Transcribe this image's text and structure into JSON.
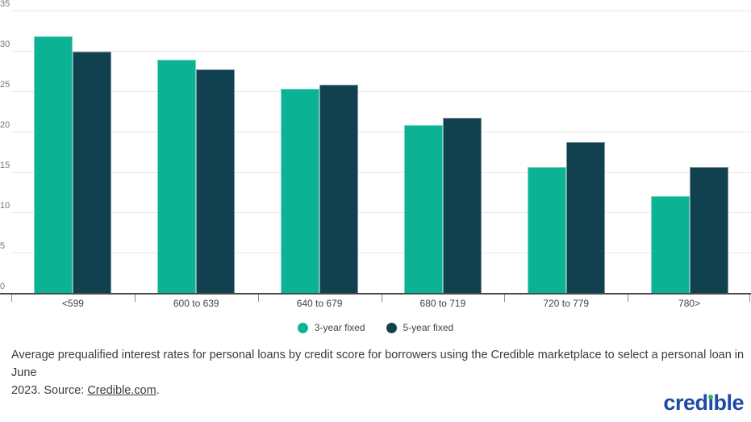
{
  "chart_data": {
    "type": "bar",
    "title": "",
    "categories": [
      "<599",
      "600 to 639",
      "640 to 679",
      "680 to 719",
      "720 to 779",
      "780>"
    ],
    "series": [
      {
        "name": "3-year fixed",
        "color": "#0cb294",
        "values": [
          31.8,
          28.9,
          25.3,
          20.8,
          15.6,
          12.0
        ]
      },
      {
        "name": "5-year fixed",
        "color": "#11404f",
        "values": [
          29.9,
          27.7,
          25.8,
          21.7,
          18.7,
          15.6
        ]
      }
    ],
    "ylim": [
      0,
      35
    ],
    "ytick_step": 5,
    "yticks": [
      0,
      5,
      10,
      15,
      20,
      25,
      30,
      35
    ],
    "grid": true,
    "legend_position": "bottom",
    "gridline_color": "#e7e7e7",
    "axis_color": "#4a4a4a"
  },
  "caption": {
    "line1": "Average prequalified interest rates for personal loans by credit score for borrowers using the Credible marketplace to select a personal loan in June",
    "line2_before_link": "2023. Source: ",
    "link_text": "Credible.com",
    "line2_after_link": "."
  },
  "logo": {
    "text": "credible",
    "text_pre": "cred",
    "i_stem": "ı",
    "text_post": "ble",
    "color": "#1d4ba4",
    "dot_color": "#2ab572"
  }
}
